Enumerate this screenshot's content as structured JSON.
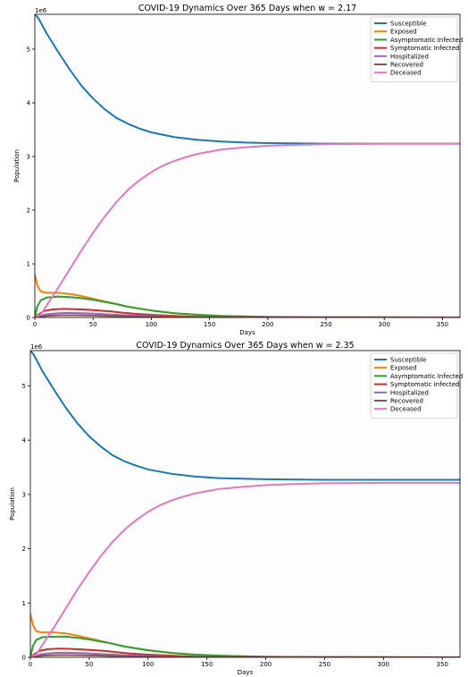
{
  "chart_data": [
    {
      "type": "line",
      "title": "COVID-19 Dynamics Over 365 Days when w = 2.17",
      "xlabel": "Days",
      "ylabel": "Population",
      "offset_label": "1e6",
      "xlim": [
        0,
        365
      ],
      "ylim": [
        0,
        5.65
      ],
      "xticks": [
        0,
        50,
        100,
        150,
        200,
        250,
        300,
        350
      ],
      "yticks": [
        0,
        1,
        2,
        3,
        4,
        5
      ],
      "grid": false,
      "legend_position": "top-right",
      "series": [
        {
          "name": "Susceptible",
          "color": "#1f77b4",
          "x": [
            0,
            3,
            10,
            20,
            30,
            40,
            50,
            60,
            70,
            80,
            90,
            100,
            120,
            140,
            160,
            180,
            200,
            220,
            250,
            280,
            320,
            365
          ],
          "y": [
            5.65,
            5.58,
            5.3,
            4.95,
            4.62,
            4.32,
            4.08,
            3.88,
            3.72,
            3.61,
            3.52,
            3.45,
            3.36,
            3.31,
            3.28,
            3.26,
            3.25,
            3.245,
            3.24,
            3.24,
            3.24,
            3.24
          ]
        },
        {
          "name": "Exposed",
          "color": "#ff7f0e",
          "x": [
            0,
            2,
            5,
            10,
            20,
            30,
            40,
            50,
            60,
            70,
            80,
            100,
            120,
            140,
            160,
            200,
            250,
            365
          ],
          "y": [
            0.8,
            0.6,
            0.49,
            0.46,
            0.46,
            0.44,
            0.4,
            0.35,
            0.3,
            0.25,
            0.2,
            0.13,
            0.08,
            0.05,
            0.03,
            0.01,
            0.005,
            0.0
          ]
        },
        {
          "name": "Asymptomatic Infected",
          "color": "#2ca02c",
          "x": [
            0,
            2,
            5,
            10,
            20,
            30,
            40,
            50,
            60,
            70,
            80,
            100,
            120,
            140,
            160,
            200,
            250,
            365
          ],
          "y": [
            0.0,
            0.2,
            0.32,
            0.37,
            0.39,
            0.38,
            0.36,
            0.33,
            0.29,
            0.25,
            0.2,
            0.13,
            0.08,
            0.05,
            0.03,
            0.01,
            0.005,
            0.0
          ]
        },
        {
          "name": "Symptomatic Infected",
          "color": "#d62728",
          "x": [
            0,
            3,
            8,
            15,
            25,
            35,
            45,
            55,
            65,
            75,
            85,
            100,
            120,
            140,
            160,
            200,
            365
          ],
          "y": [
            0.0,
            0.05,
            0.12,
            0.15,
            0.16,
            0.155,
            0.145,
            0.13,
            0.115,
            0.09,
            0.07,
            0.05,
            0.03,
            0.015,
            0.01,
            0.003,
            0.0
          ]
        },
        {
          "name": "Hospitalized",
          "color": "#9467bd",
          "x": [
            0,
            5,
            10,
            20,
            30,
            40,
            50,
            60,
            70,
            80,
            100,
            120,
            150,
            200,
            365
          ],
          "y": [
            0.0,
            0.03,
            0.06,
            0.08,
            0.085,
            0.08,
            0.072,
            0.06,
            0.05,
            0.04,
            0.025,
            0.015,
            0.008,
            0.002,
            0.0
          ]
        },
        {
          "name": "Recovered",
          "color": "#8c564b",
          "x": [
            0,
            5,
            10,
            20,
            30,
            40,
            50,
            60,
            70,
            80,
            100,
            120,
            150,
            200,
            365
          ],
          "y": [
            0.0,
            0.015,
            0.03,
            0.04,
            0.042,
            0.04,
            0.035,
            0.03,
            0.025,
            0.02,
            0.012,
            0.007,
            0.004,
            0.001,
            0.0
          ]
        },
        {
          "name": "Deceased",
          "color": "#e377c2",
          "x": [
            0,
            5,
            10,
            20,
            30,
            40,
            50,
            60,
            70,
            80,
            90,
            100,
            110,
            120,
            130,
            140,
            150,
            160,
            180,
            200,
            220,
            250,
            280,
            300,
            365
          ],
          "y": [
            0.0,
            0.05,
            0.22,
            0.55,
            0.9,
            1.25,
            1.58,
            1.88,
            2.15,
            2.38,
            2.56,
            2.71,
            2.83,
            2.92,
            2.99,
            3.05,
            3.09,
            3.13,
            3.17,
            3.2,
            3.215,
            3.23,
            3.235,
            3.24,
            3.24
          ]
        }
      ]
    },
    {
      "type": "line",
      "title": "COVID-19 Dynamics Over 365 Days when w = 2.35",
      "xlabel": "Days",
      "ylabel": "Population",
      "offset_label": "1e6",
      "xlim": [
        0,
        365
      ],
      "ylim": [
        0,
        5.65
      ],
      "xticks": [
        0,
        50,
        100,
        150,
        200,
        250,
        300,
        350
      ],
      "yticks": [
        0,
        1,
        2,
        3,
        4,
        5
      ],
      "grid": false,
      "legend_position": "top-right",
      "series": [
        {
          "name": "Susceptible",
          "color": "#1f77b4",
          "x": [
            0,
            3,
            10,
            20,
            30,
            40,
            50,
            60,
            70,
            80,
            90,
            100,
            120,
            140,
            160,
            180,
            200,
            220,
            250,
            280,
            320,
            365
          ],
          "y": [
            5.65,
            5.57,
            5.28,
            4.93,
            4.6,
            4.31,
            4.07,
            3.88,
            3.72,
            3.61,
            3.53,
            3.46,
            3.38,
            3.33,
            3.3,
            3.29,
            3.28,
            3.275,
            3.27,
            3.27,
            3.27,
            3.27
          ]
        },
        {
          "name": "Exposed",
          "color": "#ff7f0e",
          "x": [
            0,
            2,
            5,
            10,
            20,
            30,
            40,
            50,
            60,
            70,
            80,
            100,
            120,
            140,
            160,
            200,
            250,
            365
          ],
          "y": [
            0.8,
            0.6,
            0.48,
            0.46,
            0.46,
            0.44,
            0.4,
            0.35,
            0.3,
            0.25,
            0.2,
            0.13,
            0.08,
            0.05,
            0.03,
            0.01,
            0.005,
            0.0
          ]
        },
        {
          "name": "Asymptomatic Infected",
          "color": "#2ca02c",
          "x": [
            0,
            2,
            5,
            10,
            20,
            30,
            40,
            50,
            60,
            70,
            80,
            100,
            120,
            140,
            160,
            200,
            250,
            365
          ],
          "y": [
            0.0,
            0.2,
            0.32,
            0.37,
            0.38,
            0.38,
            0.36,
            0.33,
            0.29,
            0.25,
            0.2,
            0.13,
            0.08,
            0.05,
            0.03,
            0.01,
            0.005,
            0.0
          ]
        },
        {
          "name": "Symptomatic Infected",
          "color": "#d62728",
          "x": [
            0,
            3,
            8,
            15,
            25,
            35,
            45,
            55,
            65,
            75,
            85,
            100,
            120,
            140,
            160,
            200,
            365
          ],
          "y": [
            0.0,
            0.05,
            0.12,
            0.15,
            0.16,
            0.155,
            0.145,
            0.13,
            0.115,
            0.09,
            0.07,
            0.05,
            0.03,
            0.015,
            0.01,
            0.003,
            0.0
          ]
        },
        {
          "name": "Hospitalized",
          "color": "#9467bd",
          "x": [
            0,
            5,
            10,
            20,
            30,
            40,
            50,
            60,
            70,
            80,
            100,
            120,
            150,
            200,
            365
          ],
          "y": [
            0.0,
            0.03,
            0.06,
            0.08,
            0.085,
            0.08,
            0.072,
            0.06,
            0.05,
            0.04,
            0.025,
            0.015,
            0.008,
            0.002,
            0.0
          ]
        },
        {
          "name": "Recovered",
          "color": "#8c564b",
          "x": [
            0,
            5,
            10,
            20,
            30,
            40,
            50,
            60,
            70,
            80,
            100,
            120,
            150,
            200,
            365
          ],
          "y": [
            0.0,
            0.015,
            0.03,
            0.04,
            0.042,
            0.04,
            0.035,
            0.03,
            0.025,
            0.02,
            0.012,
            0.007,
            0.004,
            0.001,
            0.0
          ]
        },
        {
          "name": "Deceased",
          "color": "#e377c2",
          "x": [
            0,
            5,
            10,
            20,
            30,
            40,
            50,
            60,
            70,
            80,
            90,
            100,
            110,
            120,
            130,
            140,
            150,
            160,
            180,
            200,
            220,
            250,
            280,
            300,
            365
          ],
          "y": [
            0.0,
            0.05,
            0.22,
            0.55,
            0.9,
            1.25,
            1.57,
            1.87,
            2.13,
            2.35,
            2.53,
            2.68,
            2.8,
            2.89,
            2.96,
            3.02,
            3.06,
            3.1,
            3.14,
            3.17,
            3.19,
            3.205,
            3.21,
            3.215,
            3.215
          ]
        }
      ]
    }
  ]
}
